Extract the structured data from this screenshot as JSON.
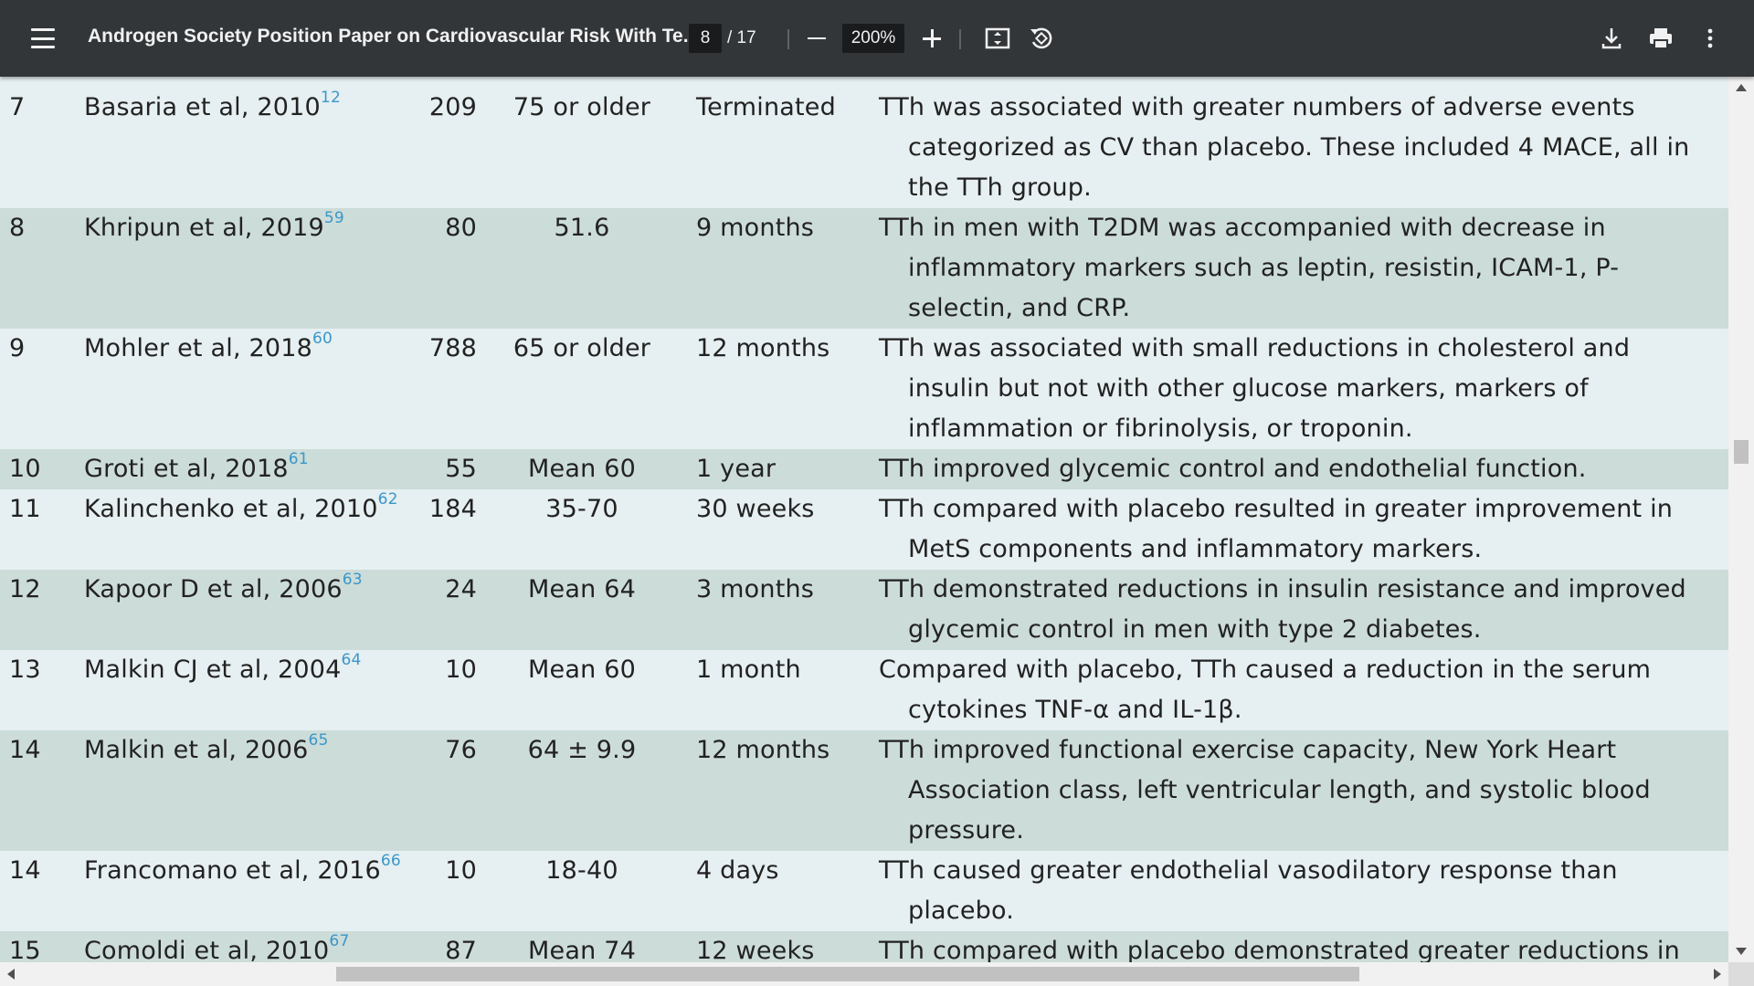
{
  "toolbar": {
    "title": "Androgen Society Position Paper on Cardiovascular Risk With Te...",
    "current_page": "8",
    "total_pages": "/ 17",
    "zoom": "200%",
    "icons": [
      "menu-icon",
      "zoom-out-icon",
      "zoom-in-icon",
      "fit-page-icon",
      "rotate-icon",
      "download-icon",
      "print-icon",
      "more-vert-icon"
    ]
  },
  "table": {
    "rows": [
      {
        "num": "7",
        "study": "Basaria et al, 2010",
        "ref": "12",
        "n": "209",
        "age": "75 or older",
        "duration": "Terminated",
        "findings": "TTh was associated with greater numbers of adverse events categorized as CV than placebo. These included 4 MACE, all in the TTh group."
      },
      {
        "num": "8",
        "study": "Khripun et al, 2019",
        "ref": "59",
        "n": "80",
        "age": "51.6",
        "duration": "9 months",
        "findings": "TTh in men with T2DM was accompanied with decrease in inflammatory markers such as leptin, resistin, ICAM-1, P-selectin, and CRP."
      },
      {
        "num": "9",
        "study": "Mohler et al, 2018",
        "ref": "60",
        "n": "788",
        "age": "65 or older",
        "duration": "12 months",
        "findings": "TTh was associated with small reductions in cholesterol and insulin but not with other glucose markers, markers of inflammation or fibrinolysis, or troponin."
      },
      {
        "num": "10",
        "study": "Groti et al, 2018",
        "ref": "61",
        "n": "55",
        "age": "Mean 60",
        "duration": "1 year",
        "findings": "TTh improved glycemic control and endothelial function."
      },
      {
        "num": "11",
        "study": "Kalinchenko et al, 2010",
        "ref": "62",
        "n": "184",
        "age": "35-70",
        "duration": "30 weeks",
        "findings": "TTh compared with placebo resulted in greater improvement in MetS components and inflammatory markers."
      },
      {
        "num": "12",
        "study": "Kapoor D et al, 2006",
        "ref": "63",
        "n": "24",
        "age": "Mean 64",
        "duration": "3 months",
        "findings": "TTh demonstrated reductions in insulin resistance and improved glycemic control in men with type 2 diabetes."
      },
      {
        "num": "13",
        "study": "Malkin CJ et al, 2004",
        "ref": "64",
        "n": "10",
        "age": "Mean 60",
        "duration": "1 month",
        "findings": "Compared with placebo, TTh caused a reduction in the serum cytokines TNF-α and IL-1β."
      },
      {
        "num": "14",
        "study": "Malkin et al, 2006",
        "ref": "65",
        "n": "76",
        "age": "64 ± 9.9",
        "duration": "12 months",
        "findings": "TTh improved functional exercise capacity, New York Heart Association class, left ventricular length, and systolic blood pressure."
      },
      {
        "num": "14",
        "study": "Francomano et al, 2016",
        "ref": "66",
        "n": "10",
        "age": "18-40",
        "duration": "4 days",
        "findings": "TTh caused greater endothelial vasodilatory response than placebo."
      },
      {
        "num": "15",
        "study": "Comoldi et al, 2010",
        "ref": "67",
        "n": "87",
        "age": "Mean 74",
        "duration": "12 weeks",
        "findings": "TTh compared with placebo demonstrated greater reductions in"
      }
    ]
  }
}
